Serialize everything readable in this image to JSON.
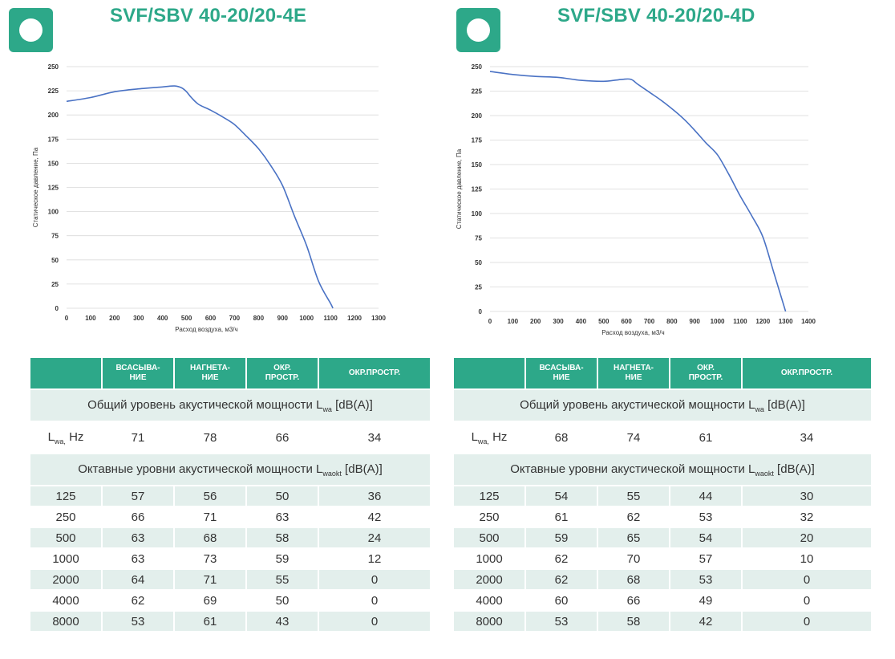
{
  "colors": {
    "brand": "#2da889",
    "line": "#4a72c4",
    "grid": "#d9d9d9",
    "table_alt": "#e3efec"
  },
  "panels": [
    {
      "title": "SVF/SBV 40-20/20-4E",
      "table": {
        "headers": [
          "",
          "ВСАСЫВА-\nНИЕ",
          "НАГНЕТА-\nНИЕ",
          "ОКР.\nПРОСТР.",
          "ОКР.ПРОСТР."
        ],
        "total_title": "Общий уровень акустической мощности L",
        "total_title_sub": "wa",
        "total_title_end": "[dB(A)]",
        "total_row_label": "L",
        "total_row_label_sub": "wa,",
        "total_row_label_end": "Hz",
        "total_values": [
          "71",
          "78",
          "66",
          "34"
        ],
        "octave_title": "Октавные уровни акустической мощности L",
        "octave_title_sub": "waokt",
        "octave_title_end": "[dB(A)]",
        "octave_rows": [
          [
            "125",
            "57",
            "56",
            "50",
            "36"
          ],
          [
            "250",
            "66",
            "71",
            "63",
            "42"
          ],
          [
            "500",
            "63",
            "68",
            "58",
            "24"
          ],
          [
            "1000",
            "63",
            "73",
            "59",
            "12"
          ],
          [
            "2000",
            "64",
            "71",
            "55",
            "0"
          ],
          [
            "4000",
            "62",
            "69",
            "50",
            "0"
          ],
          [
            "8000",
            "53",
            "61",
            "43",
            "0"
          ]
        ]
      }
    },
    {
      "title": "SVF/SBV 40-20/20-4D",
      "table": {
        "headers": [
          "",
          "ВСАСЫВА-\nНИЕ",
          "НАГНЕТА-\nНИЕ",
          "ОКР.\nПРОСТР.",
          "ОКР.ПРОСТР."
        ],
        "total_title": "Общий уровень акустической мощности L",
        "total_title_sub": "wa",
        "total_title_end": "[dB(A)]",
        "total_row_label": "L",
        "total_row_label_sub": "wa,",
        "total_row_label_end": "Hz",
        "total_values": [
          "68",
          "74",
          "61",
          "34"
        ],
        "octave_title": "Октавные уровни акустической мощности L",
        "octave_title_sub": "waokt",
        "octave_title_end": "[dB(A)]",
        "octave_rows": [
          [
            "125",
            "54",
            "55",
            "44",
            "30"
          ],
          [
            "250",
            "61",
            "62",
            "53",
            "32"
          ],
          [
            "500",
            "59",
            "65",
            "54",
            "20"
          ],
          [
            "1000",
            "62",
            "70",
            "57",
            "10"
          ],
          [
            "2000",
            "62",
            "68",
            "53",
            "0"
          ],
          [
            "4000",
            "60",
            "66",
            "49",
            "0"
          ],
          [
            "8000",
            "53",
            "58",
            "42",
            "0"
          ]
        ]
      }
    }
  ],
  "chart_data": [
    {
      "type": "line",
      "xlabel": "Расход воздуха, м3/ч",
      "ylabel": "Статическое давление, Па",
      "xlim": [
        0,
        1300
      ],
      "ylim": [
        0,
        250
      ],
      "xticks": [
        0,
        100,
        200,
        300,
        400,
        500,
        600,
        700,
        800,
        900,
        1000,
        1100,
        1200,
        1300
      ],
      "yticks": [
        0,
        25,
        50,
        75,
        100,
        125,
        150,
        175,
        200,
        225,
        250
      ],
      "grid": "horizontal",
      "series": [
        {
          "x": [
            0,
            100,
            200,
            300,
            400,
            450,
            480,
            500,
            520,
            550,
            600,
            650,
            700,
            750,
            800,
            850,
            900,
            950,
            1000,
            1050,
            1100,
            1110
          ],
          "y": [
            214,
            218,
            224,
            227,
            229,
            230,
            228,
            224,
            218,
            211,
            205,
            198,
            190,
            178,
            165,
            148,
            127,
            95,
            65,
            28,
            5,
            0
          ]
        }
      ]
    },
    {
      "type": "line",
      "xlabel": "Расход воздуха, м3/ч",
      "ylabel": "Статическое давление, Па",
      "xlim": [
        0,
        1400
      ],
      "ylim": [
        0,
        250
      ],
      "xticks": [
        0,
        100,
        200,
        300,
        400,
        500,
        600,
        700,
        800,
        900,
        1000,
        1100,
        1200,
        1300,
        1400
      ],
      "yticks": [
        0,
        25,
        50,
        75,
        100,
        125,
        150,
        175,
        200,
        225,
        250
      ],
      "grid": "horizontal",
      "series": [
        {
          "x": [
            0,
            100,
            200,
            300,
            400,
            500,
            580,
            620,
            650,
            700,
            750,
            800,
            850,
            900,
            950,
            1000,
            1050,
            1100,
            1150,
            1200,
            1250,
            1300
          ],
          "y": [
            245,
            242,
            240,
            239,
            236,
            235,
            237,
            237,
            232,
            224,
            216,
            207,
            197,
            185,
            172,
            160,
            140,
            118,
            98,
            76,
            38,
            0
          ]
        }
      ]
    }
  ]
}
